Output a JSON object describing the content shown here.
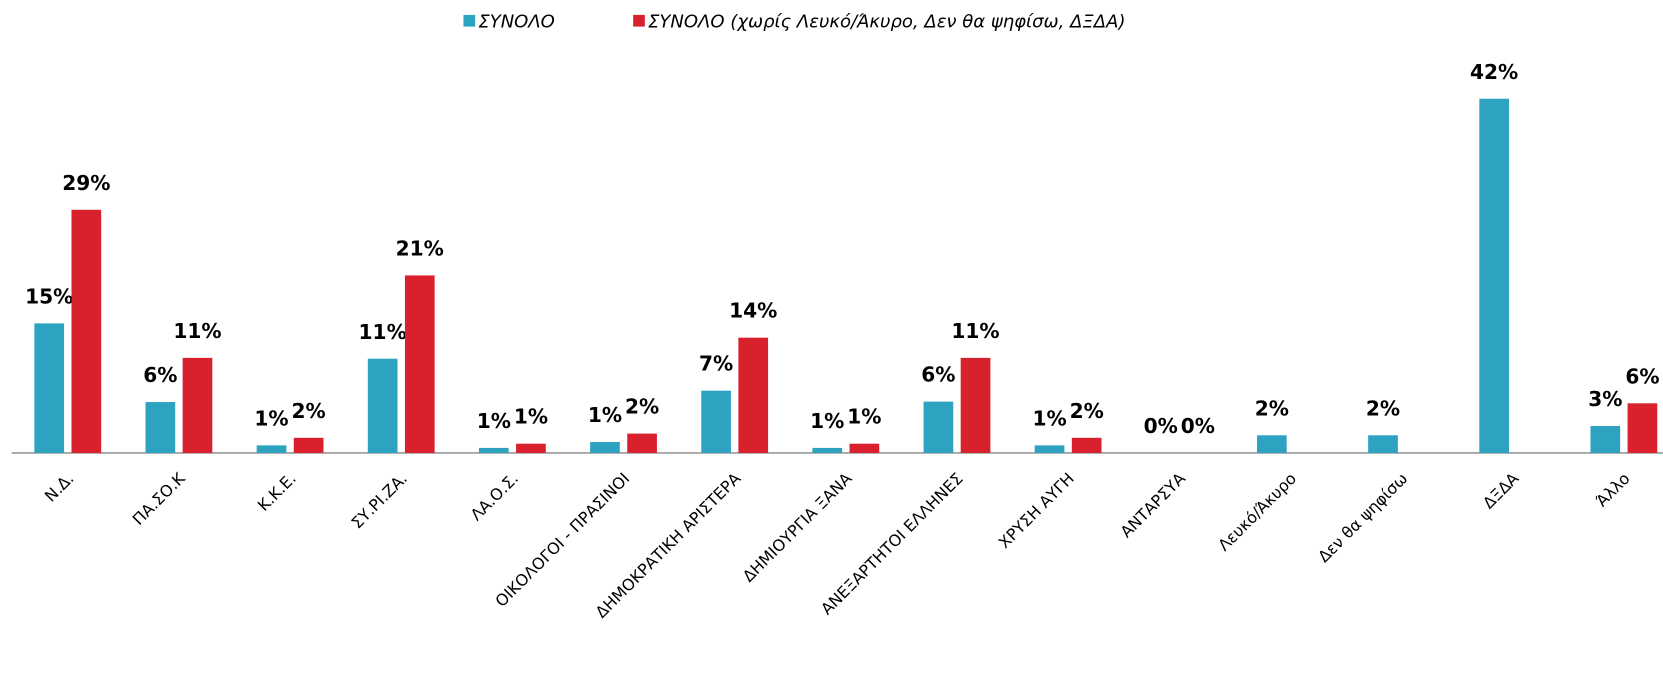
{
  "chart_data": {
    "type": "bar",
    "categories": [
      "Ν.Δ.",
      "ΠΑ.ΣΟ.Κ",
      "Κ.Κ.Ε.",
      "ΣΥ.ΡΙ.ΖΑ.",
      "ΛΑ.Ο.Σ.",
      "ΟΙΚΟΛΟΓΟΙ - ΠΡΑΣΙΝΟΙ",
      "ΔΗΜΟΚΡΑΤΙΚΗ ΑΡΙΣΤΕΡΑ",
      "ΔΗΜΙΟΥΡΓΙΑ ΞΑΝΑ",
      "ΑΝΕΞΑΡΤΗΤΟΙ ΕΛΛΗΝΕΣ",
      "ΧΡΥΣΗ ΑΥΓΗ",
      "ΑΝΤΑΡΣΥΑ",
      "Λευκό/Άκυρο",
      "Δεν θα ψηφίσω",
      "ΔΞΔΑ",
      "Άλλο"
    ],
    "series": [
      {
        "name": "ΣΥΝΟΛΟ",
        "color": "#2ea3c1",
        "values": [
          15.4,
          6.05,
          0.9,
          11.2,
          0.6,
          1.3,
          7.4,
          0.6,
          6.1,
          0.9,
          0,
          2.1,
          2.1,
          42.1,
          3.2
        ],
        "value_labels": [
          "15%",
          "6%",
          "1%",
          "11%",
          "1%",
          "1%",
          "7%",
          "1%",
          "6%",
          "1%",
          "0%",
          "2%",
          "2%",
          "42%",
          "3%"
        ]
      },
      {
        "name": "ΣΥΝΟΛΟ (χωρίς Λευκό/Άκυρο, Δεν θα ψηφίσω, ΔΞΔΑ)",
        "color": "#d9212e",
        "values": [
          28.9,
          11.3,
          1.8,
          21.1,
          1.1,
          2.3,
          13.7,
          1.1,
          11.3,
          1.8,
          0,
          null,
          null,
          null,
          5.9
        ],
        "value_labels": [
          "29%",
          "11%",
          "2%",
          "21%",
          "1%",
          "2%",
          "14%",
          "1%",
          "11%",
          "2%",
          "0%",
          null,
          null,
          null,
          "6%"
        ]
      }
    ],
    "legend": "top"
  }
}
